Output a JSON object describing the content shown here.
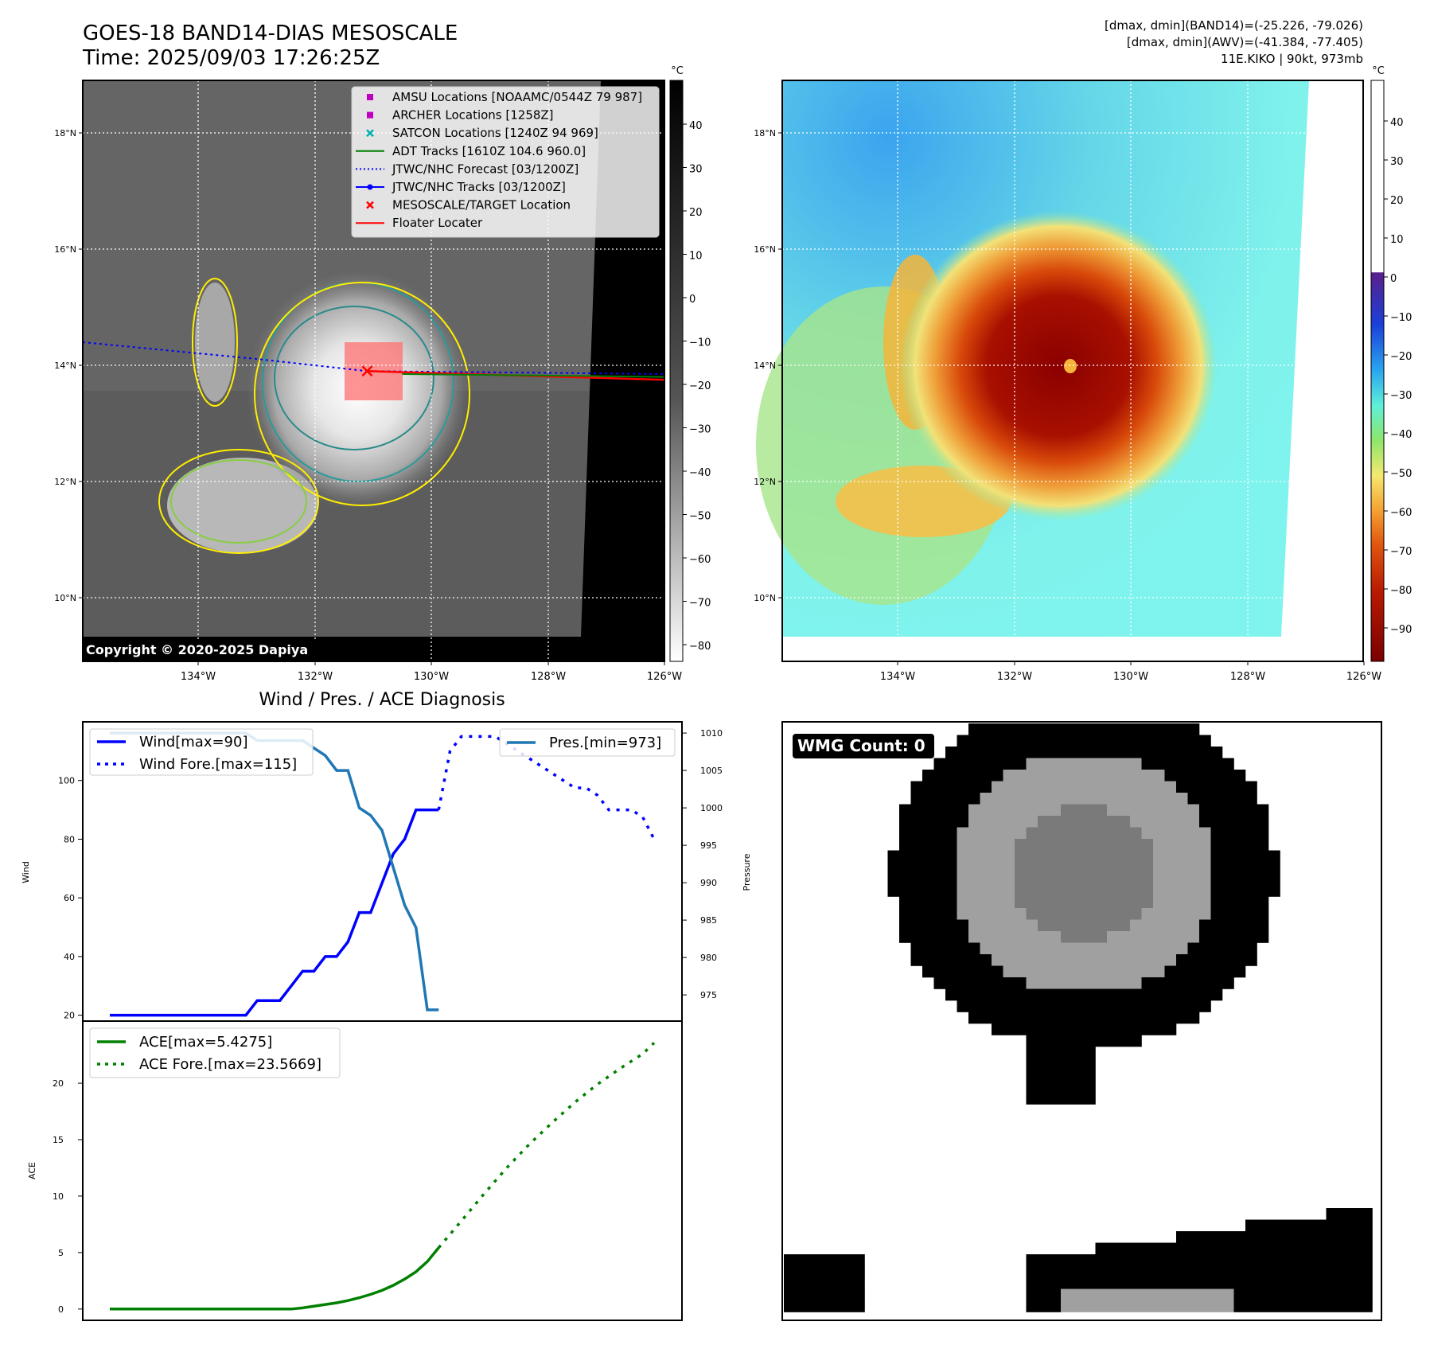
{
  "header": {
    "title_line1": "GOES-18 BAND14-DIAS MESOSCALE",
    "title_line2": "Time: 2025/09/03 17:26:25Z",
    "info_line1": "[dmax, dmin](BAND14)=(-25.226, -79.026)",
    "info_line2": "[dmax, dmin](AWV)=(-41.384, -77.405)",
    "info_line3": "11E.KIKO | 90kt, 973mb"
  },
  "map": {
    "lat_labels": [
      "18°N",
      "16°N",
      "14°N",
      "12°N",
      "10°N"
    ],
    "lon_labels": [
      "134°W",
      "132°W",
      "130°W",
      "128°W",
      "126°W"
    ],
    "copyright": "Copyright © 2020-2025 Dapiya",
    "storm_center": {
      "lat": 13.9,
      "lon": -131.1
    },
    "legend": [
      {
        "label": "AMSU Locations [NOAAMC/0544Z 79 987]",
        "marker": "square",
        "color": "#c000c0"
      },
      {
        "label": "ARCHER Locations [1258Z]",
        "marker": "square",
        "color": "#c000c0"
      },
      {
        "label": "SATCON Locations [1240Z 94 969]",
        "marker": "x",
        "color": "#00b0b0"
      },
      {
        "label": "ADT Tracks [1610Z 104.6 960.0]",
        "marker": "line",
        "color": "#008000"
      },
      {
        "label": "JTWC/NHC Forecast [03/1200Z]",
        "marker": "dotted",
        "color": "#0000ff"
      },
      {
        "label": "JTWC/NHC Tracks [03/1200Z]",
        "marker": "line-dot",
        "color": "#0000ff"
      },
      {
        "label": "MESOSCALE/TARGET Location",
        "marker": "x",
        "color": "#ff0000"
      },
      {
        "label": "Floater Locater",
        "marker": "line",
        "color": "#ff0000"
      }
    ]
  },
  "colorbar_gray": {
    "unit": "°C",
    "ticks": [
      "40",
      "30",
      "20",
      "10",
      "0",
      "−10",
      "−20",
      "−30",
      "−40",
      "−50",
      "−60",
      "−70",
      "−80"
    ]
  },
  "colorbar_color": {
    "unit": "°C",
    "ticks": [
      "40",
      "30",
      "20",
      "10",
      "0",
      "−10",
      "−20",
      "−30",
      "−40",
      "−50",
      "−60",
      "−70",
      "−80",
      "−90"
    ]
  },
  "wmg": {
    "label": "WMG Count: 0"
  },
  "chart_data": [
    {
      "type": "line",
      "title": "Wind / Pres. / ACE Diagnosis",
      "ylabel": "Wind",
      "ylabel_right": "Pressure",
      "ylim": [
        18,
        120
      ],
      "ylim_right": [
        971.5,
        1011.5
      ],
      "y_ticks": [
        "20",
        "40",
        "60",
        "80",
        "100"
      ],
      "y_ticks_right": [
        "975",
        "980",
        "985",
        "990",
        "995",
        "1000",
        "1005",
        "1010"
      ],
      "x": [
        0,
        1,
        2,
        3,
        4,
        5,
        6,
        7,
        8,
        9,
        10,
        11,
        12,
        13,
        14,
        15,
        16,
        17,
        18,
        19,
        20,
        21,
        22,
        23,
        24,
        25,
        26,
        27,
        28,
        29,
        30,
        31,
        32,
        33,
        34,
        35,
        36,
        37,
        38,
        39,
        40,
        41,
        42,
        43,
        44,
        45,
        46,
        47,
        48
      ],
      "series": [
        {
          "name": "Wind[max=90]",
          "style": "solid",
          "color": "#0000ff",
          "axis": "left",
          "x": [
            0,
            1,
            2,
            3,
            4,
            5,
            6,
            7,
            8,
            9,
            10,
            11,
            12,
            13,
            14,
            15,
            16,
            17,
            18,
            19,
            20,
            21,
            22,
            23,
            24,
            25,
            26,
            27,
            28,
            29
          ],
          "values": [
            20,
            20,
            20,
            20,
            20,
            20,
            20,
            20,
            20,
            20,
            20,
            20,
            20,
            25,
            25,
            25,
            30,
            35,
            35,
            40,
            40,
            45,
            55,
            55,
            65,
            75,
            80,
            90,
            90,
            90
          ]
        },
        {
          "name": "Wind Fore.[max=115]",
          "style": "dotted",
          "color": "#0000ff",
          "axis": "left",
          "x": [
            29,
            30,
            31,
            32,
            33,
            34,
            35,
            36,
            37,
            38,
            39,
            40,
            41,
            42,
            43,
            44,
            45,
            46,
            47,
            48
          ],
          "values": [
            90,
            110,
            115,
            115,
            115,
            115,
            112.5,
            110,
            107.5,
            105,
            102.5,
            100,
            97.5,
            97.5,
            95,
            90,
            90,
            90,
            87.5,
            80
          ]
        },
        {
          "name": "Pres.[min=973]",
          "style": "solid",
          "color": "#1f77b4",
          "axis": "right",
          "x": [
            0,
            1,
            2,
            3,
            4,
            5,
            6,
            7,
            8,
            9,
            10,
            11,
            12,
            13,
            14,
            15,
            16,
            17,
            18,
            19,
            20,
            21,
            22,
            23,
            24,
            25,
            26,
            27,
            28,
            29
          ],
          "values": [
            1010,
            1010,
            1010,
            1010,
            1010,
            1010,
            1010,
            1010,
            1010,
            1010,
            1010,
            1010,
            1010,
            1009,
            1009,
            1009,
            1009,
            1009,
            1008,
            1007,
            1005,
            1005,
            1000,
            999,
            997,
            992,
            987,
            984,
            973,
            973
          ]
        }
      ]
    },
    {
      "type": "line",
      "ylabel": "ACE",
      "ylim": [
        -1,
        25.5
      ],
      "y_ticks": [
        "0",
        "5",
        "10",
        "15",
        "20"
      ],
      "series": [
        {
          "name": "ACE[max=5.4275]",
          "style": "solid",
          "color": "#008000",
          "x": [
            0,
            1,
            2,
            3,
            4,
            5,
            6,
            7,
            8,
            9,
            10,
            11,
            12,
            13,
            14,
            15,
            16,
            17,
            18,
            19,
            20,
            21,
            22,
            23,
            24,
            25,
            26,
            27,
            28,
            29
          ],
          "values": [
            0,
            0,
            0,
            0,
            0,
            0,
            0,
            0,
            0,
            0,
            0,
            0,
            0,
            0,
            0,
            0,
            0,
            0.1,
            0.25,
            0.4,
            0.55,
            0.75,
            1.0,
            1.3,
            1.65,
            2.1,
            2.65,
            3.3,
            4.2,
            5.43
          ]
        },
        {
          "name": "ACE Fore.[max=23.5669]",
          "style": "dotted",
          "color": "#008000",
          "x": [
            29,
            31,
            33,
            35,
            37,
            39,
            41,
            43,
            45,
            47,
            48
          ],
          "values": [
            5.43,
            7.8,
            10.2,
            12.5,
            14.6,
            16.5,
            18.3,
            19.9,
            21.3,
            22.6,
            23.57
          ]
        }
      ]
    }
  ]
}
